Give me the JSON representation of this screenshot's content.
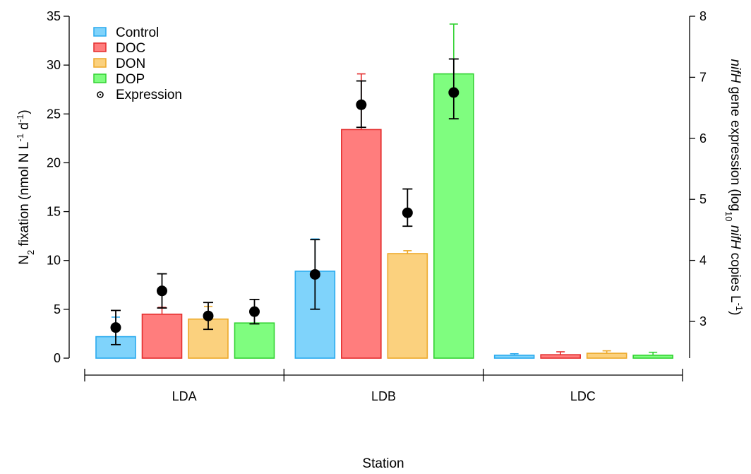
{
  "chart_data": {
    "type": "bar",
    "categories": [
      "LDA",
      "LDB",
      "LDC"
    ],
    "xlabel": "Station",
    "ylabel": "N2 fixation (nmol N L-1 d-1)",
    "ylabel_parts": {
      "a": "N",
      "sub": "2",
      "b": " fixation (nmol N L",
      "sup1": "-1",
      "c": " d",
      "sup2": "-1",
      "d": ")"
    },
    "y2label": "nifH gene expression (log10 nifH copies L-1)",
    "y2label_parts": {
      "a": "nifH",
      "b": " gene expression (log",
      "sub": "10",
      "c": " ",
      "d": "nifH",
      "e": " copies L",
      "sup": "-1",
      "f": ")"
    },
    "ylim": [
      0,
      35
    ],
    "y2lim": [
      2.4,
      8
    ],
    "yticks": [
      0,
      5,
      10,
      15,
      20,
      25,
      30,
      35
    ],
    "y2ticks": [
      3,
      4,
      5,
      6,
      7,
      8
    ],
    "series": [
      {
        "name": "Control",
        "fill": "#7fd3fb",
        "stroke": "#2aaaee",
        "values": [
          2.2,
          8.9,
          0.3
        ],
        "err_upper": [
          4.2,
          12.2,
          0.45
        ]
      },
      {
        "name": "DOC",
        "fill": "#ff7d7d",
        "stroke": "#e42d2d",
        "values": [
          4.5,
          23.4,
          0.35
        ],
        "err_upper": [
          5.2,
          29.1,
          0.65
        ]
      },
      {
        "name": "DON",
        "fill": "#fbd17e",
        "stroke": "#eda92a",
        "values": [
          4.0,
          10.7,
          0.5
        ],
        "err_upper": [
          5.3,
          11.0,
          0.75
        ]
      },
      {
        "name": "DOP",
        "fill": "#7ffd7f",
        "stroke": "#33d233",
        "values": [
          3.6,
          29.1,
          0.3
        ],
        "err_upper": [
          3.6,
          34.2,
          0.6
        ]
      }
    ],
    "expression": {
      "name": "Expression",
      "values": [
        [
          2.9,
          3.5,
          3.09,
          3.16
        ],
        [
          3.77,
          6.55,
          4.78,
          6.75
        ]
      ],
      "err_low": [
        [
          2.62,
          3.22,
          2.87,
          2.96
        ],
        [
          3.2,
          6.18,
          4.56,
          6.32
        ]
      ],
      "err_high": [
        [
          3.18,
          3.78,
          3.31,
          3.36
        ],
        [
          4.34,
          6.94,
          5.17,
          7.3
        ]
      ]
    },
    "legend_position": "top-left",
    "grid": false
  }
}
